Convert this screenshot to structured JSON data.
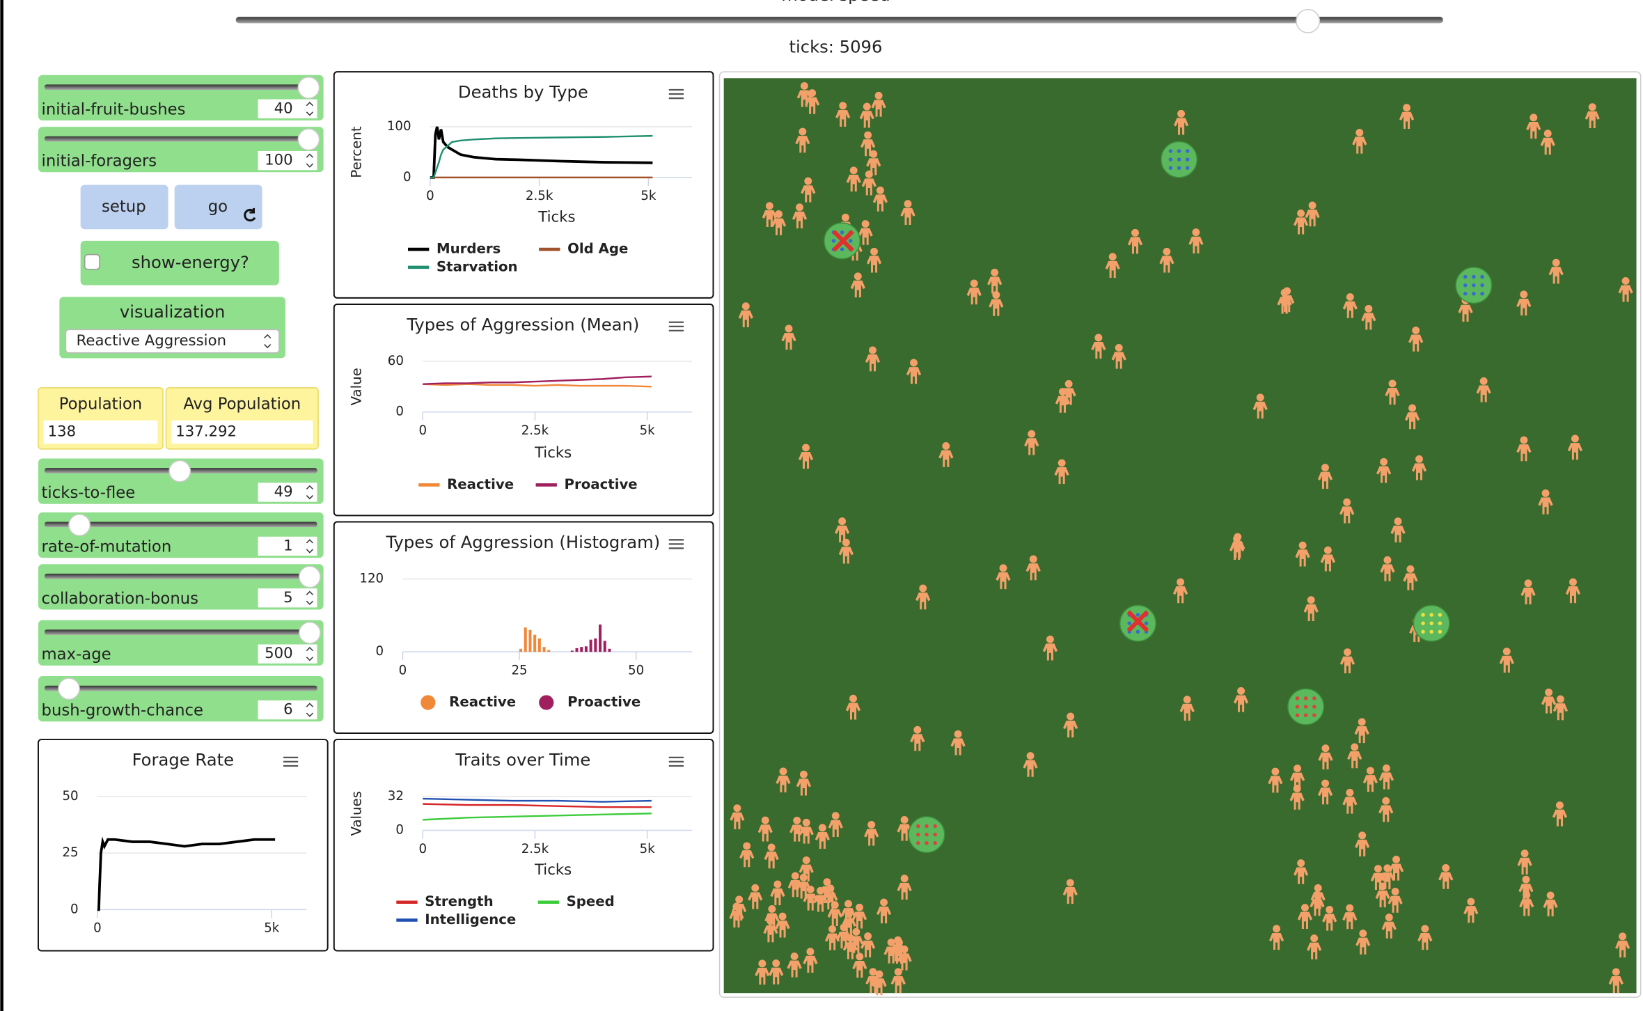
{
  "header": {
    "speed_label": "model speed",
    "ticks": "ticks: 5096"
  },
  "controls": {
    "sliders": [
      {
        "name": "initial-fruit-bushes",
        "value": 40
      },
      {
        "name": "initial-foragers",
        "value": 100
      },
      {
        "name": "ticks-to-flee",
        "value": 49
      },
      {
        "name": "rate-of-mutation",
        "value": 1
      },
      {
        "name": "collaboration-bonus",
        "value": 5
      },
      {
        "name": "max-age",
        "value": 500
      },
      {
        "name": "bush-growth-chance",
        "value": 6
      }
    ],
    "buttons": [
      "setup",
      "go"
    ],
    "switch": "show-energy?",
    "chooser": {
      "label": "visualization",
      "value": "Reactive Aggression"
    }
  },
  "monitors": [
    {
      "name": "Population",
      "value": 138
    },
    {
      "name": "Avg Population",
      "value": 137.292
    }
  ],
  "chart_data": [
    {
      "type": "line",
      "title": "Deaths by Type",
      "y_label": "Percent",
      "x_label": "Ticks",
      "xlim": [
        0,
        6000
      ],
      "ylim": [
        0,
        100
      ],
      "yticks": [
        0,
        100
      ],
      "xticks": [
        0,
        {
          "value": 2500,
          "label": "2.5k"
        },
        {
          "value": 5000,
          "label": "5k"
        }
      ],
      "series": [
        {
          "name": "Murders",
          "color": "#000000",
          "x": [
            0,
            80,
            120,
            160,
            200,
            250,
            300,
            400,
            500,
            700,
            1000,
            1500,
            2000,
            3000,
            4000,
            5096
          ],
          "values": [
            0,
            0,
            85,
            100,
            75,
            95,
            70,
            60,
            55,
            45,
            40,
            36,
            35,
            32,
            30,
            29
          ]
        },
        {
          "name": "Old Age",
          "color": "#a0522d",
          "x": [
            0,
            5096
          ],
          "values": [
            0,
            0
          ]
        },
        {
          "name": "Starvation",
          "color": "#1f8f6f",
          "x": [
            0,
            80,
            120,
            160,
            200,
            250,
            300,
            400,
            500,
            700,
            1000,
            1500,
            2000,
            3000,
            4000,
            5096
          ],
          "values": [
            0,
            0,
            10,
            20,
            30,
            45,
            55,
            62,
            70,
            73,
            75,
            77,
            78,
            79,
            80,
            82
          ]
        }
      ]
    },
    {
      "type": "line",
      "title": "Types of Aggression (Mean)",
      "y_label": "Value",
      "x_label": "Ticks",
      "xlim": [
        0,
        6000
      ],
      "ylim": [
        0,
        60
      ],
      "yticks": [
        0,
        60
      ],
      "xticks": [
        0,
        {
          "value": 2500,
          "label": "2.5k"
        },
        {
          "value": 5000,
          "label": "5k"
        }
      ],
      "series": [
        {
          "name": "Reactive",
          "color": "#f0883a",
          "x": [
            0,
            500,
            1000,
            1500,
            2000,
            2500,
            3000,
            3500,
            4000,
            4500,
            5096
          ],
          "values": [
            33,
            32,
            33,
            32,
            32,
            31,
            32,
            31,
            31,
            31,
            30
          ]
        },
        {
          "name": "Proactive",
          "color": "#a0205f",
          "x": [
            0,
            500,
            1000,
            1500,
            2000,
            2500,
            3000,
            3500,
            4000,
            4500,
            5096
          ],
          "values": [
            33,
            34,
            34,
            35,
            35,
            36,
            37,
            38,
            39,
            41,
            42
          ]
        }
      ]
    },
    {
      "type": "bar",
      "title": "Types of Aggression (Histogram)",
      "xlim": [
        0,
        62
      ],
      "ylim": [
        0,
        120
      ],
      "yticks": [
        0,
        120
      ],
      "xticks": [
        0,
        25,
        50
      ],
      "series": [
        {
          "name": "Reactive",
          "color": "#f0883a",
          "x": [
            25,
            26,
            27,
            28,
            29,
            30,
            31
          ],
          "values": [
            5,
            40,
            36,
            28,
            22,
            8,
            3
          ]
        },
        {
          "name": "Proactive",
          "color": "#a0205f",
          "x": [
            36,
            37,
            38,
            39,
            40,
            41,
            42,
            43,
            44
          ],
          "values": [
            2,
            6,
            8,
            9,
            20,
            22,
            45,
            18,
            5
          ]
        }
      ]
    },
    {
      "type": "line",
      "title": "Forage Rate",
      "xlim": [
        0,
        6000
      ],
      "ylim": [
        0,
        50
      ],
      "yticks": [
        0,
        25,
        50
      ],
      "xticks": [
        0,
        {
          "value": 5000,
          "label": "5k"
        }
      ],
      "series": [
        {
          "color": "#000000",
          "x": [
            0,
            40,
            60,
            100,
            150,
            200,
            300,
            500,
            1000,
            1500,
            2000,
            2500,
            3000,
            3500,
            4000,
            4500,
            5096
          ],
          "values": [
            0,
            0,
            10,
            25,
            30,
            28,
            31,
            31,
            30,
            30,
            29,
            28,
            29,
            29,
            30,
            31,
            31
          ]
        }
      ]
    },
    {
      "type": "line",
      "title": "Traits over Time",
      "y_label": "Values",
      "x_label": "Ticks",
      "xlim": [
        0,
        6000
      ],
      "ylim": [
        0,
        32
      ],
      "yticks": [
        0,
        32
      ],
      "xticks": [
        0,
        {
          "value": 2500,
          "label": "2.5k"
        },
        {
          "value": 5000,
          "label": "5k"
        }
      ],
      "series": [
        {
          "name": "Strength",
          "color": "#d62728",
          "x": [
            0,
            1000,
            2000,
            3000,
            4000,
            5096
          ],
          "values": [
            25,
            24,
            24,
            23,
            22,
            22
          ]
        },
        {
          "name": "Speed",
          "color": "#3ccc3c",
          "x": [
            0,
            1000,
            2000,
            3000,
            4000,
            5096
          ],
          "values": [
            10,
            12,
            13,
            14,
            15,
            16
          ]
        },
        {
          "name": "Intelligence",
          "color": "#2050b0",
          "x": [
            0,
            1000,
            2000,
            3000,
            4000,
            5096
          ],
          "values": [
            30,
            29,
            28,
            28,
            27,
            28
          ]
        }
      ]
    }
  ]
}
